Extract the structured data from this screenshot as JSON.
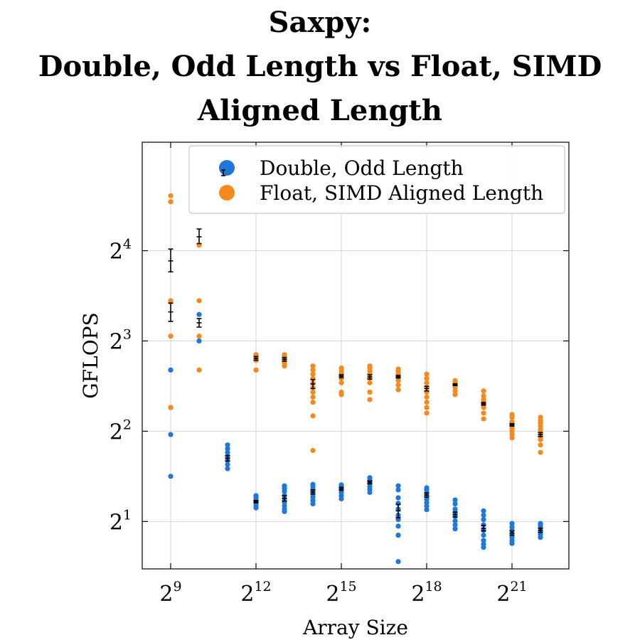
{
  "chart_data": {
    "type": "scatter",
    "title_lines": [
      "Saxpy:",
      "Double, Odd Length vs Float, SIMD",
      "Aligned Length"
    ],
    "xlabel": "Array Size",
    "ylabel": "GFLOPS",
    "x_scale": "log2",
    "y_scale": "log2",
    "x_ticks": [
      {
        "base": "2",
        "exp": "9",
        "value": 512
      },
      {
        "base": "2",
        "exp": "12",
        "value": 4096
      },
      {
        "base": "2",
        "exp": "15",
        "value": 32768
      },
      {
        "base": "2",
        "exp": "18",
        "value": 262144
      },
      {
        "base": "2",
        "exp": "21",
        "value": 2097152
      }
    ],
    "y_ticks": [
      {
        "base": "2",
        "exp": "1",
        "value": 2
      },
      {
        "base": "2",
        "exp": "2",
        "value": 4
      },
      {
        "base": "2",
        "exp": "3",
        "value": 8
      },
      {
        "base": "2",
        "exp": "4",
        "value": 16
      }
    ],
    "xlim": [
      256,
      8388608
    ],
    "ylim": [
      1.39,
      36.8
    ],
    "grid": true,
    "legend_position": "top-right",
    "colors": {
      "double": "#1f77d8",
      "float": "#f5891d",
      "errorbar": "#000000"
    },
    "series": [
      {
        "name": "Double, Odd Length",
        "color": "#1f77d8",
        "groups": [
          {
            "x": 512,
            "points": [
              2.83,
              3.9,
              4.8,
              6.4
            ],
            "mean": null,
            "err": null
          },
          {
            "x": 1024,
            "points": [
              8.0,
              9.8
            ],
            "mean": 9.2,
            "err": [
              8.9,
              9.5
            ]
          },
          {
            "x": 2048,
            "points": [
              3.0,
              3.1,
              3.2,
              3.3,
              3.4,
              3.5,
              3.6
            ],
            "mean": 3.25,
            "err": [
              3.18,
              3.32
            ]
          },
          {
            "x": 4096,
            "points": [
              2.22,
              2.26,
              2.3,
              2.34,
              2.37,
              2.41,
              2.44
            ],
            "mean": 2.33,
            "err": [
              2.31,
              2.35
            ]
          },
          {
            "x": 8192,
            "points": [
              2.16,
              2.2,
              2.26,
              2.32,
              2.38,
              2.44,
              2.52,
              2.58,
              2.63
            ],
            "mean": 2.39,
            "err": [
              2.34,
              2.44
            ]
          },
          {
            "x": 16384,
            "points": [
              2.29,
              2.35,
              2.41,
              2.47,
              2.53,
              2.59,
              2.64,
              2.66
            ],
            "mean": 2.51,
            "err": [
              2.47,
              2.55
            ]
          },
          {
            "x": 32768,
            "points": [
              2.38,
              2.44,
              2.5,
              2.56,
              2.62,
              2.65
            ],
            "mean": 2.57,
            "err": [
              2.54,
              2.6
            ]
          },
          {
            "x": 65536,
            "points": [
              2.5,
              2.56,
              2.62,
              2.68,
              2.74,
              2.8
            ],
            "mean": 2.7,
            "err": [
              2.67,
              2.73
            ]
          },
          {
            "x": 131072,
            "points": [
              1.47,
              1.8,
              1.93,
              2.03,
              2.1,
              2.2,
              2.3,
              2.4,
              2.55,
              2.63
            ],
            "mean": 2.17,
            "err": [
              2.06,
              2.28
            ]
          },
          {
            "x": 262144,
            "points": [
              2.19,
              2.25,
              2.31,
              2.37,
              2.43,
              2.49,
              2.55,
              2.59
            ],
            "mean": 2.45,
            "err": [
              2.41,
              2.49
            ]
          },
          {
            "x": 524288,
            "points": [
              1.89,
              1.95,
              2.01,
              2.08,
              2.14,
              2.2,
              2.29,
              2.36
            ],
            "mean": 2.11,
            "err": [
              2.07,
              2.15
            ]
          },
          {
            "x": 1048576,
            "points": [
              1.64,
              1.68,
              1.73,
              1.8,
              1.87,
              1.95,
              2.03,
              2.1,
              2.17
            ],
            "mean": 1.9,
            "err": [
              1.86,
              1.94
            ]
          },
          {
            "x": 2097152,
            "points": [
              1.69,
              1.73,
              1.77,
              1.82,
              1.87,
              1.92,
              1.97
            ],
            "mean": 1.83,
            "err": [
              1.8,
              1.86
            ]
          },
          {
            "x": 4194304,
            "points": [
              1.77,
              1.81,
              1.85,
              1.9,
              1.94,
              1.97
            ],
            "mean": 1.87,
            "err": [
              1.84,
              1.9
            ]
          }
        ]
      },
      {
        "name": "Float, SIMD Aligned Length",
        "color": "#f5891d",
        "groups": [
          {
            "x": 512,
            "points": [
              4.8,
              8.3,
              10.8,
              10.9,
              23.3,
              24.4
            ],
            "mean": null,
            "err": null
          },
          {
            "x": 1024,
            "points": [
              6.4,
              8.3,
              10.9,
              16.7
            ],
            "mean": null,
            "err": null
          },
          {
            "x": 4096,
            "points": [
              6.4,
              6.9,
              7.1,
              7.2
            ],
            "mean": 7.0,
            "err": [
              6.9,
              7.1
            ]
          },
          {
            "x": 8192,
            "points": [
              6.6,
              6.75,
              6.9,
              7.0,
              7.1,
              7.2
            ],
            "mean": 6.95,
            "err": [
              6.85,
              7.05
            ]
          },
          {
            "x": 16384,
            "points": [
              3.45,
              4.5,
              5.0,
              5.2,
              5.4,
              5.6,
              5.8,
              6.0,
              6.2,
              6.4,
              6.6
            ],
            "mean": 5.75,
            "err": [
              5.55,
              5.95
            ]
          },
          {
            "x": 32768,
            "points": [
              5.3,
              5.4,
              5.8,
              6.0,
              6.2,
              6.35,
              6.5
            ],
            "mean": 6.1,
            "err": [
              6.03,
              6.17
            ]
          },
          {
            "x": 65536,
            "points": [
              5.1,
              5.4,
              5.8,
              6.0,
              6.2,
              6.35,
              6.5,
              6.6
            ],
            "mean": 6.07,
            "err": [
              5.97,
              6.17
            ]
          },
          {
            "x": 131072,
            "points": [
              5.5,
              5.7,
              5.9,
              6.05,
              6.2,
              6.35,
              6.45
            ],
            "mean": 6.08,
            "err": [
              6.02,
              6.14
            ]
          },
          {
            "x": 262144,
            "points": [
              4.6,
              4.8,
              5.0,
              5.2,
              5.4,
              5.6,
              5.8,
              6.0,
              6.2
            ],
            "mean": 5.55,
            "err": [
              5.45,
              5.65
            ]
          },
          {
            "x": 524288,
            "points": [
              5.3,
              5.45,
              5.6,
              5.7,
              5.8,
              5.9
            ],
            "mean": 5.72,
            "err": [
              5.68,
              5.76
            ]
          },
          {
            "x": 1048576,
            "points": [
              4.4,
              4.6,
              4.8,
              4.9,
              5.0,
              5.1,
              5.25,
              5.45
            ],
            "mean": 4.94,
            "err": [
              4.89,
              4.99
            ]
          },
          {
            "x": 2097152,
            "points": [
              3.8,
              3.9,
              4.0,
              4.1,
              4.2,
              4.3,
              4.45,
              4.55
            ],
            "mean": 4.2,
            "err": [
              4.16,
              4.24
            ]
          },
          {
            "x": 4194304,
            "points": [
              3.4,
              3.6,
              3.75,
              3.85,
              3.95,
              4.05,
              4.15,
              4.25,
              4.35,
              4.45
            ],
            "mean": 3.9,
            "err": [
              3.84,
              3.96
            ]
          }
        ]
      }
    ],
    "extra_errorbars": [
      {
        "x": 512,
        "mean": 14.8,
        "err": [
          13.6,
          16.2
        ]
      },
      {
        "x": 512,
        "mean": 10.0,
        "err": [
          9.3,
          10.7
        ]
      },
      {
        "x": 1024,
        "mean": 17.8,
        "err": [
          16.9,
          18.9
        ]
      }
    ]
  }
}
